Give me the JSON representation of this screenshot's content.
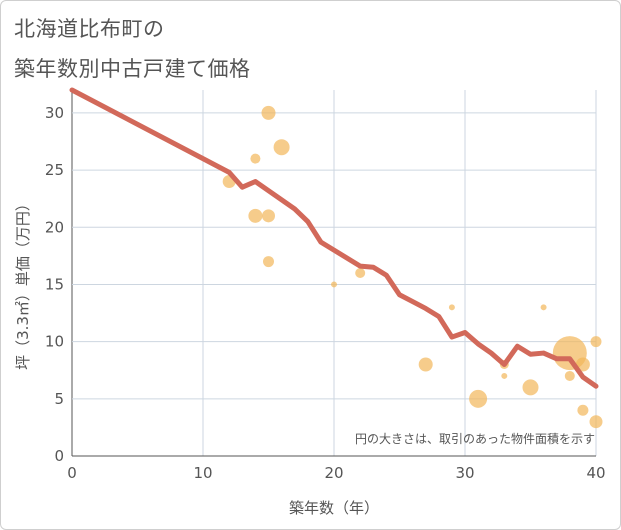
{
  "chart_data": {
    "type": "scatter",
    "title_lines": [
      "北海道比布町の",
      "築年数別中古戸建て価格"
    ],
    "xlabel": "築年数（年）",
    "ylabel": "坪（3.3㎡）単価（万円）",
    "xlim": [
      0,
      40
    ],
    "ylim": [
      0,
      32
    ],
    "x_ticks": [
      0,
      10,
      20,
      30,
      40
    ],
    "y_ticks": [
      0,
      5,
      10,
      15,
      20,
      25,
      30
    ],
    "grid": true,
    "note": "円の大きさは、取引のあった物件面積を示す",
    "colors": {
      "bubble": "#f2b65a",
      "line": "#d2695a",
      "grid": "#cdd6e0",
      "text": "#555555"
    },
    "bubbles": [
      {
        "x": 12,
        "y": 24,
        "size": 9
      },
      {
        "x": 14,
        "y": 26,
        "size": 6
      },
      {
        "x": 14,
        "y": 21,
        "size": 10
      },
      {
        "x": 15,
        "y": 30,
        "size": 10
      },
      {
        "x": 15,
        "y": 21,
        "size": 9
      },
      {
        "x": 15,
        "y": 17,
        "size": 7
      },
      {
        "x": 16,
        "y": 27,
        "size": 12
      },
      {
        "x": 20,
        "y": 15,
        "size": 2
      },
      {
        "x": 22,
        "y": 16,
        "size": 6
      },
      {
        "x": 27,
        "y": 8,
        "size": 10
      },
      {
        "x": 29,
        "y": 13,
        "size": 2
      },
      {
        "x": 31,
        "y": 5,
        "size": 14
      },
      {
        "x": 33,
        "y": 8,
        "size": 5
      },
      {
        "x": 33,
        "y": 7,
        "size": 2
      },
      {
        "x": 35,
        "y": 6,
        "size": 12
      },
      {
        "x": 36,
        "y": 13,
        "size": 2
      },
      {
        "x": 38,
        "y": 9,
        "size": 30
      },
      {
        "x": 38,
        "y": 7,
        "size": 6
      },
      {
        "x": 39,
        "y": 8,
        "size": 10
      },
      {
        "x": 39,
        "y": 4,
        "size": 7
      },
      {
        "x": 40,
        "y": 10,
        "size": 7
      },
      {
        "x": 40,
        "y": 3,
        "size": 9
      }
    ],
    "trend": [
      [
        0,
        32
      ],
      [
        12,
        24.8
      ],
      [
        13,
        23.5
      ],
      [
        14,
        24
      ],
      [
        15,
        23.2
      ],
      [
        16,
        22.4
      ],
      [
        17,
        21.6
      ],
      [
        18,
        20.5
      ],
      [
        19,
        18.7
      ],
      [
        20,
        18
      ],
      [
        21,
        17.3
      ],
      [
        22,
        16.6
      ],
      [
        23,
        16.5
      ],
      [
        24,
        15.8
      ],
      [
        25,
        14.1
      ],
      [
        26,
        13.5
      ],
      [
        27,
        12.9
      ],
      [
        28,
        12.2
      ],
      [
        29,
        10.4
      ],
      [
        30,
        10.8
      ],
      [
        31,
        9.8
      ],
      [
        32,
        9
      ],
      [
        33,
        8
      ],
      [
        34,
        9.6
      ],
      [
        35,
        8.9
      ],
      [
        36,
        9
      ],
      [
        37,
        8.5
      ],
      [
        38,
        8.5
      ],
      [
        39,
        6.9
      ],
      [
        40,
        6.1
      ]
    ]
  }
}
